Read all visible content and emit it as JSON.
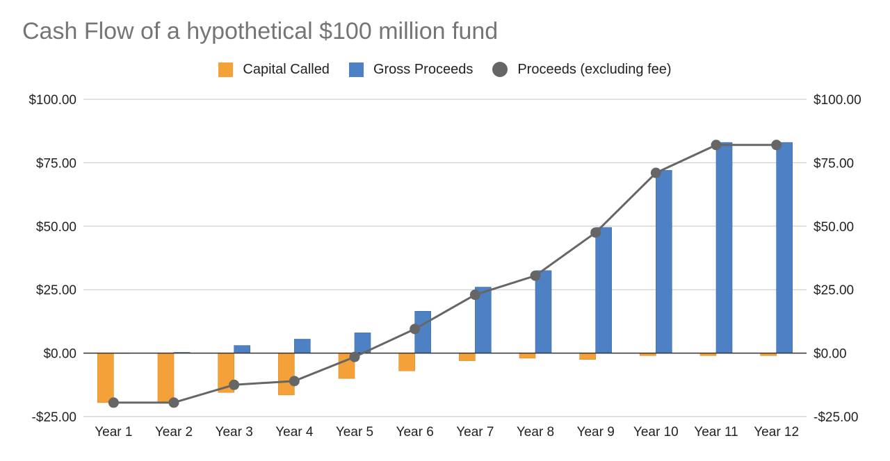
{
  "chart_data": {
    "type": "bar",
    "title": "Cash Flow of a hypothetical $100 million fund",
    "categories": [
      "Year 1",
      "Year 2",
      "Year 3",
      "Year 4",
      "Year 5",
      "Year 6",
      "Year 7",
      "Year 8",
      "Year 9",
      "Year 10",
      "Year 11",
      "Year 12"
    ],
    "series": [
      {
        "name": "Capital Called",
        "kind": "bar",
        "color": "#f4a13a",
        "values": [
          -19.5,
          -19.5,
          -15.5,
          -16.5,
          -10,
          -7,
          -3,
          -2,
          -2.5,
          -1,
          -1,
          -1
        ]
      },
      {
        "name": "Gross Proceeds",
        "kind": "bar",
        "color": "#4e81c4",
        "values": [
          0,
          0.3,
          3,
          5.5,
          8,
          16.5,
          26,
          32.5,
          49.5,
          72,
          83,
          83
        ]
      },
      {
        "name": "Proceeds (excluding fee)",
        "kind": "line",
        "color": "#666666",
        "values": [
          -19.5,
          -19.5,
          -12.5,
          -11,
          -1.5,
          9.5,
          23,
          30.5,
          47.5,
          71,
          82,
          82
        ]
      }
    ],
    "ylim": [
      -25,
      100
    ],
    "yticks": [
      -25,
      0,
      25,
      50,
      75,
      100
    ],
    "ytick_labels": [
      "-$25.00",
      "$0.00",
      "$25.00",
      "$50.00",
      "$75.00",
      "$100.00"
    ],
    "secondary_axis": true,
    "legend_position": "top-center",
    "grid": true,
    "xlabel": "",
    "ylabel": ""
  }
}
